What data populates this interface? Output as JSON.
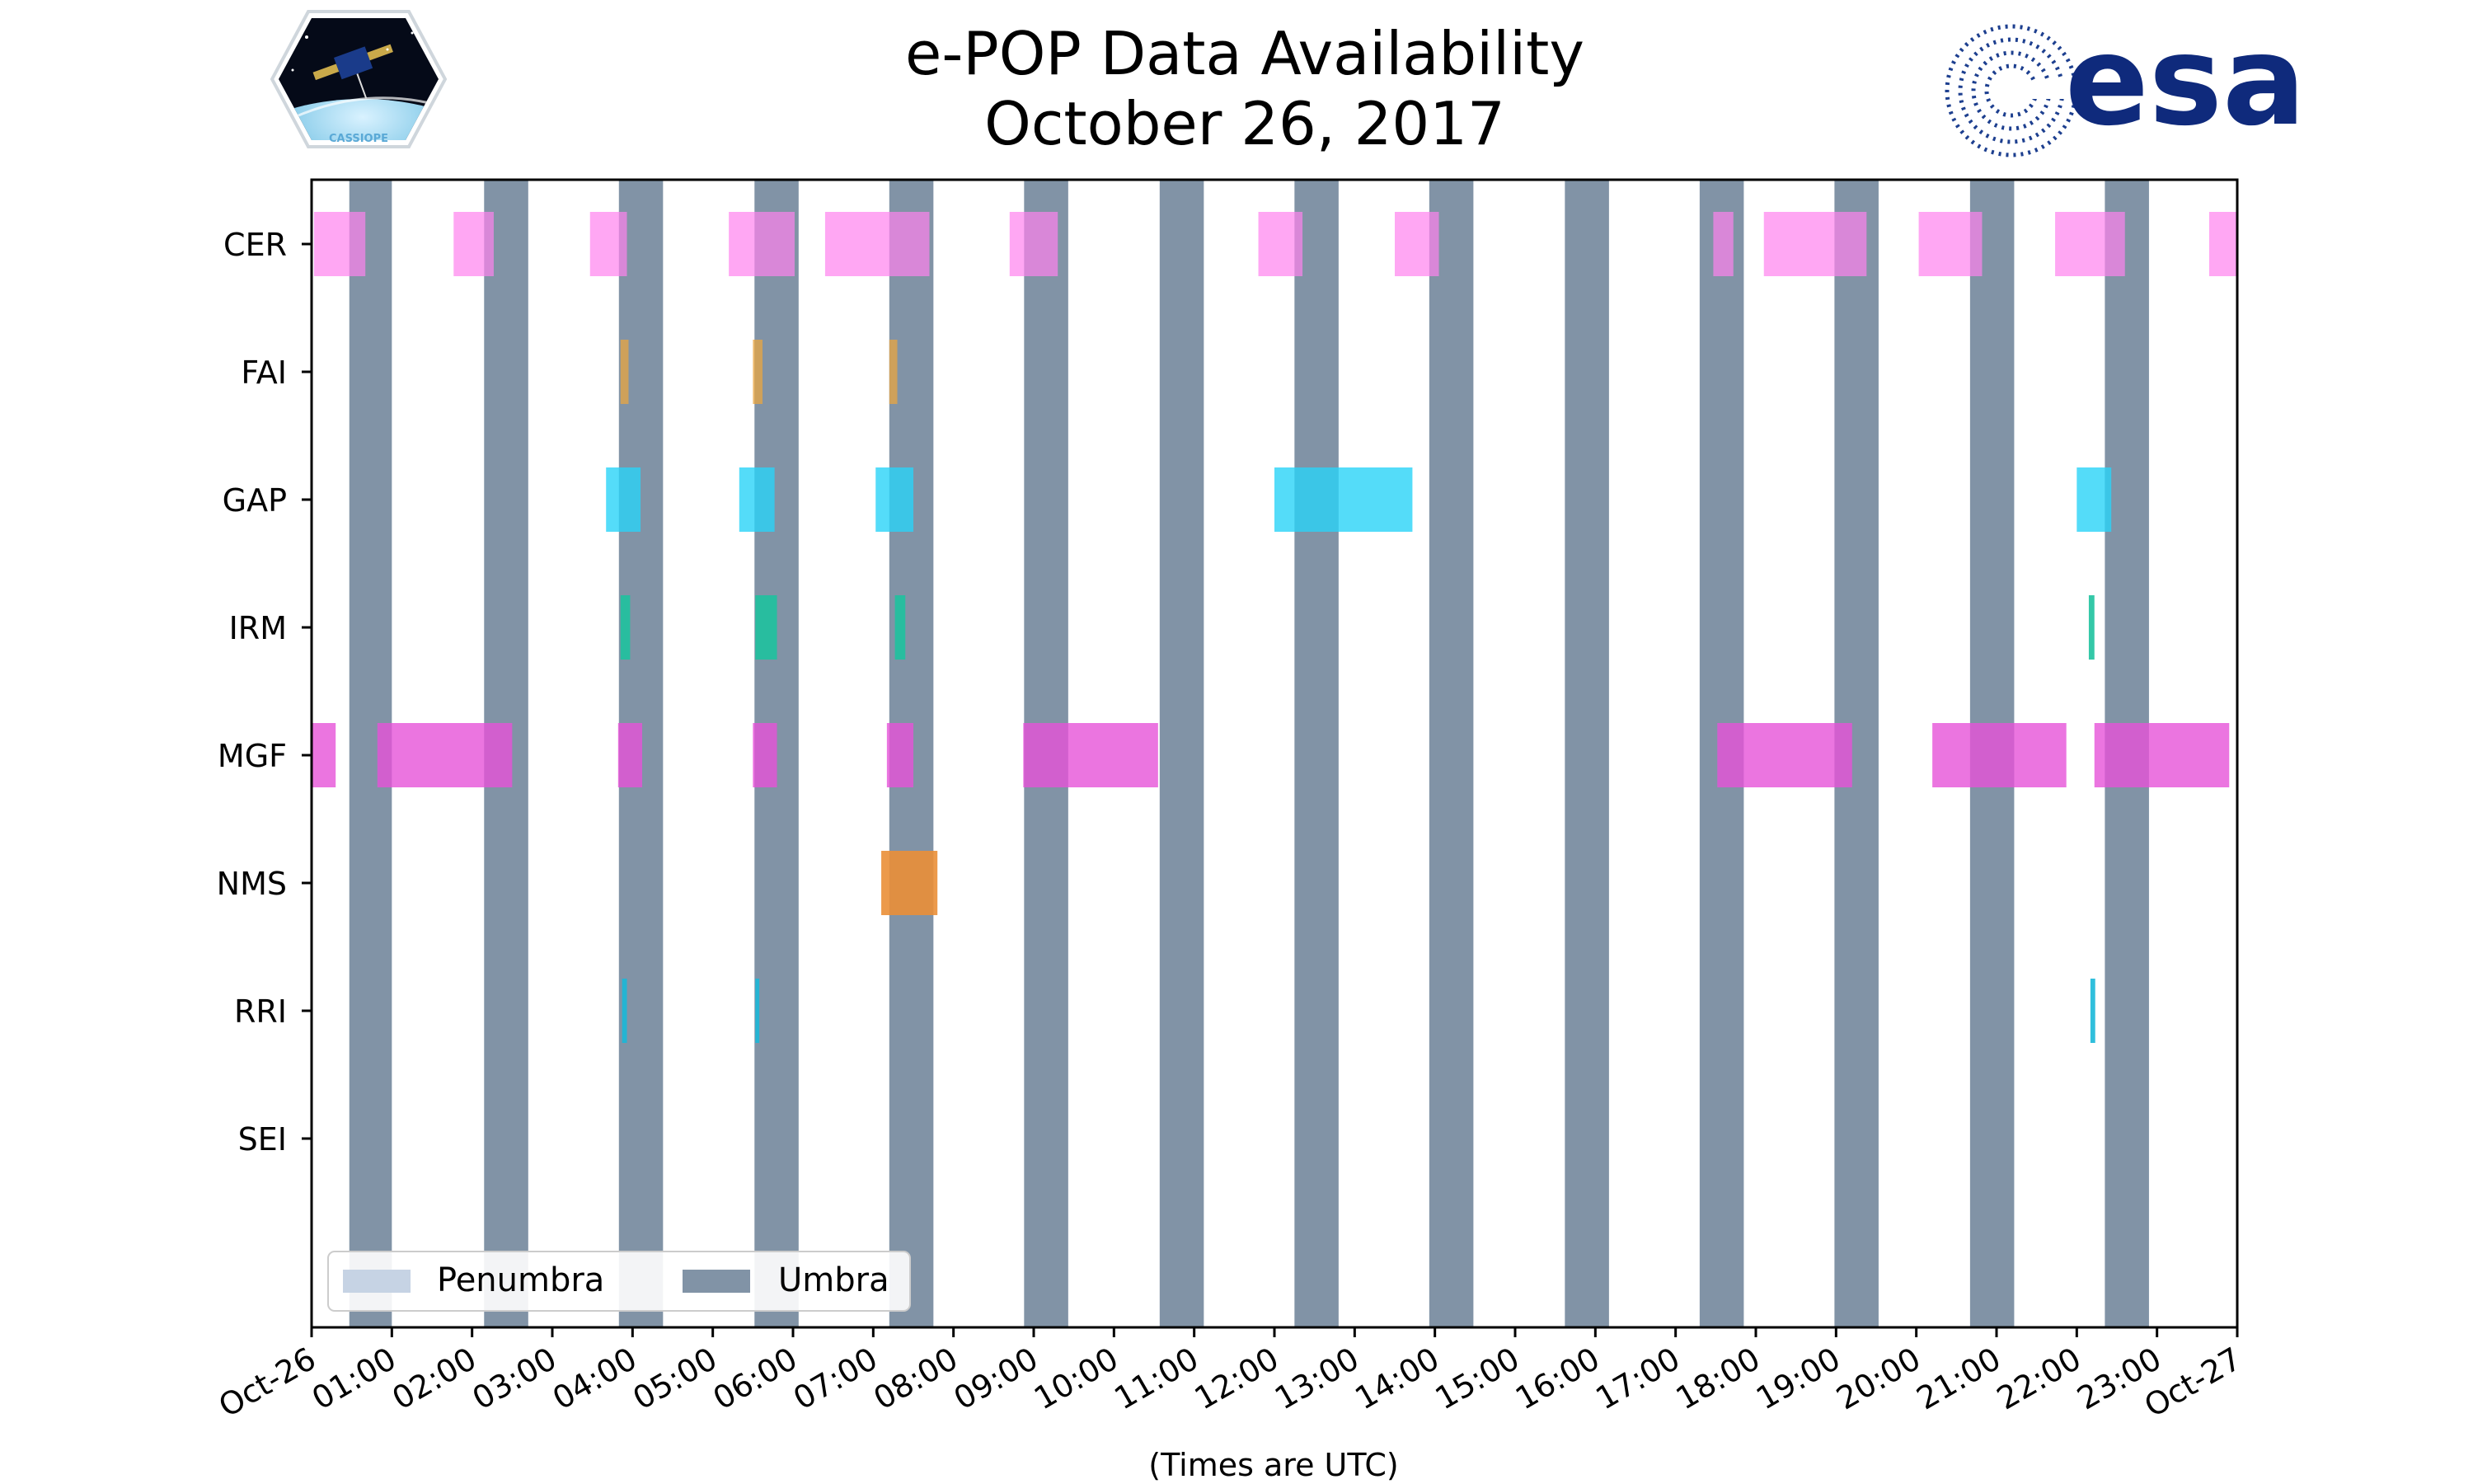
{
  "title": {
    "line1": "e-POP Data Availability",
    "line2": "October 26, 2017"
  },
  "logos": {
    "left": {
      "name": "CASSIOPE mission patch",
      "text": "CASSIOPE"
    },
    "right": {
      "name": "esa logo",
      "text": "esa",
      "color": "#0f2a7c"
    }
  },
  "chart_data": {
    "type": "timeline",
    "xlabel": "(Times are UTC)",
    "xlim": [
      "00:00",
      "24:00"
    ],
    "x_tick_labels": [
      "Oct-26",
      "01:00",
      "02:00",
      "03:00",
      "04:00",
      "05:00",
      "06:00",
      "07:00",
      "08:00",
      "09:00",
      "10:00",
      "11:00",
      "12:00",
      "13:00",
      "14:00",
      "15:00",
      "16:00",
      "17:00",
      "18:00",
      "19:00",
      "20:00",
      "21:00",
      "22:00",
      "23:00",
      "Oct-27"
    ],
    "instruments": [
      "CER",
      "FAI",
      "GAP",
      "IRM",
      "MGF",
      "NMS",
      "RRI",
      "SEI"
    ],
    "grid": false,
    "legend": {
      "placement": "lower-left",
      "entries": [
        {
          "label": "Penumbra",
          "color": "#c6d3e4"
        },
        {
          "label": "Umbra",
          "color": "#8193a6"
        }
      ]
    },
    "umbra_intervals_hours": [
      [
        0.47,
        1.0
      ],
      [
        2.15,
        2.7
      ],
      [
        3.83,
        4.38
      ],
      [
        5.52,
        6.07
      ],
      [
        7.2,
        7.75
      ],
      [
        8.88,
        9.43
      ],
      [
        10.57,
        11.12
      ],
      [
        12.25,
        12.8
      ],
      [
        13.93,
        14.48
      ],
      [
        15.62,
        16.17
      ],
      [
        17.3,
        17.85
      ],
      [
        18.98,
        19.53
      ],
      [
        20.67,
        21.22
      ],
      [
        22.35,
        22.9
      ]
    ],
    "series": [
      {
        "name": "CER",
        "color": "#ff82ee",
        "opacity": 0.7,
        "intervals_hours": [
          [
            0.03,
            0.67
          ],
          [
            1.77,
            2.27
          ],
          [
            3.47,
            3.93
          ],
          [
            5.2,
            6.02
          ],
          [
            6.4,
            7.7
          ],
          [
            8.7,
            9.3
          ],
          [
            11.8,
            12.35
          ],
          [
            13.5,
            14.05
          ],
          [
            17.47,
            17.72
          ],
          [
            18.1,
            19.38
          ],
          [
            20.03,
            20.82
          ],
          [
            21.73,
            22.6
          ],
          [
            23.65,
            24.0
          ]
        ]
      },
      {
        "name": "FAI",
        "color": "#eaa640",
        "opacity": 0.75,
        "intervals_hours": [
          [
            3.85,
            3.95
          ],
          [
            5.5,
            5.62
          ],
          [
            7.2,
            7.3
          ]
        ]
      },
      {
        "name": "GAP",
        "color": "#29d3f7",
        "opacity": 0.8,
        "intervals_hours": [
          [
            3.67,
            4.1
          ],
          [
            5.33,
            5.77
          ],
          [
            7.03,
            7.5
          ],
          [
            12.0,
            13.72
          ],
          [
            22.0,
            22.43
          ]
        ]
      },
      {
        "name": "IRM",
        "color": "#1ec29f",
        "opacity": 0.9,
        "intervals_hours": [
          [
            3.85,
            3.97
          ],
          [
            5.53,
            5.8
          ],
          [
            7.27,
            7.4
          ],
          [
            22.15,
            22.22
          ]
        ]
      },
      {
        "name": "MGF",
        "color": "#e652d8",
        "opacity": 0.8,
        "intervals_hours": [
          [
            0.0,
            0.3
          ],
          [
            0.82,
            2.5
          ],
          [
            3.82,
            4.12
          ],
          [
            5.5,
            5.8
          ],
          [
            7.17,
            7.5
          ],
          [
            8.87,
            10.55
          ],
          [
            17.52,
            19.2
          ],
          [
            20.2,
            21.87
          ],
          [
            22.22,
            23.9
          ]
        ]
      },
      {
        "name": "NMS",
        "color": "#ea8f37",
        "opacity": 0.9,
        "intervals_hours": [
          [
            7.1,
            7.8
          ]
        ]
      },
      {
        "name": "RRI",
        "color": "#1ab8d8",
        "opacity": 0.9,
        "intervals_hours": [
          [
            3.87,
            3.93
          ],
          [
            5.53,
            5.58
          ],
          [
            22.17,
            22.23
          ]
        ]
      },
      {
        "name": "SEI",
        "color": "#888888",
        "opacity": 0.9,
        "intervals_hours": []
      }
    ]
  }
}
